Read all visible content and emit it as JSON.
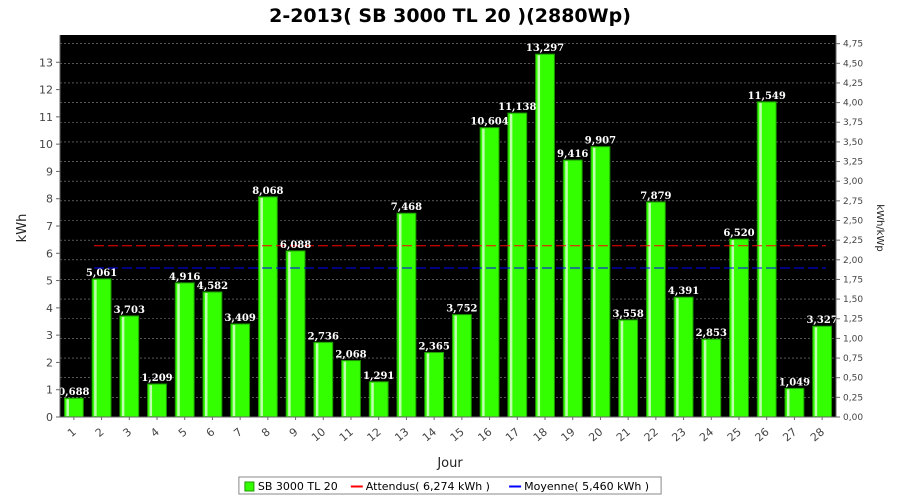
{
  "chart_data": {
    "type": "bar",
    "title": "2-2013( SB 3000 TL 20 )(2880Wp)",
    "xlabel": "Jour",
    "ylabel": "kWh",
    "ylabel_right": "kWh/kWp",
    "categories": [
      "1",
      "2",
      "3",
      "4",
      "5",
      "6",
      "7",
      "8",
      "9",
      "10",
      "11",
      "12",
      "13",
      "14",
      "15",
      "16",
      "17",
      "18",
      "19",
      "20",
      "21",
      "22",
      "23",
      "24",
      "25",
      "26",
      "27",
      "28"
    ],
    "series": [
      {
        "name": "SB 3000 TL 20",
        "values": [
          0.688,
          5.061,
          3.703,
          1.209,
          4.916,
          4.582,
          3.409,
          8.068,
          6.088,
          2.736,
          2.068,
          1.291,
          7.468,
          2.365,
          3.752,
          10.604,
          11.138,
          13.297,
          9.416,
          9.907,
          3.558,
          7.879,
          4.391,
          2.853,
          6.52,
          11.549,
          1.049,
          3.327
        ],
        "labels": [
          "0,688",
          "5,061",
          "3,703",
          "1,209",
          "4,916",
          "4,582",
          "3,409",
          "8,068",
          "6,088",
          "2,736",
          "2,068",
          "1,291",
          "7,468",
          "2,365",
          "3,752",
          "10,604",
          "11,138",
          "13,297",
          "9,416",
          "9,907",
          "3,558",
          "7,879",
          "4,391",
          "2,853",
          "6,520",
          "11,549",
          "1,049",
          "3,327"
        ],
        "color": "#33ff00"
      }
    ],
    "reference_lines": [
      {
        "name": "Attendus( 6,274 kWh )",
        "value": 6.274,
        "color": "#ff0000"
      },
      {
        "name": "Moyenne( 5,460 kWh )",
        "value": 5.46,
        "color": "#0000ff"
      }
    ],
    "ylim": [
      0,
      14
    ],
    "yticks": [
      0,
      1,
      2,
      3,
      4,
      5,
      6,
      7,
      8,
      9,
      10,
      11,
      12,
      13
    ],
    "ylim_right": [
      0,
      4.86
    ],
    "yticks_right": [
      "0,00",
      "0,25",
      "0,50",
      "0,75",
      "1,00",
      "1,25",
      "1,50",
      "1,75",
      "2,00",
      "2,25",
      "2,50",
      "2,75",
      "3,00",
      "3,25",
      "3,50",
      "3,75",
      "4,00",
      "4,25",
      "4,50",
      "4,75"
    ],
    "background": "#000000",
    "grid": true,
    "legend_position": "bottom"
  }
}
